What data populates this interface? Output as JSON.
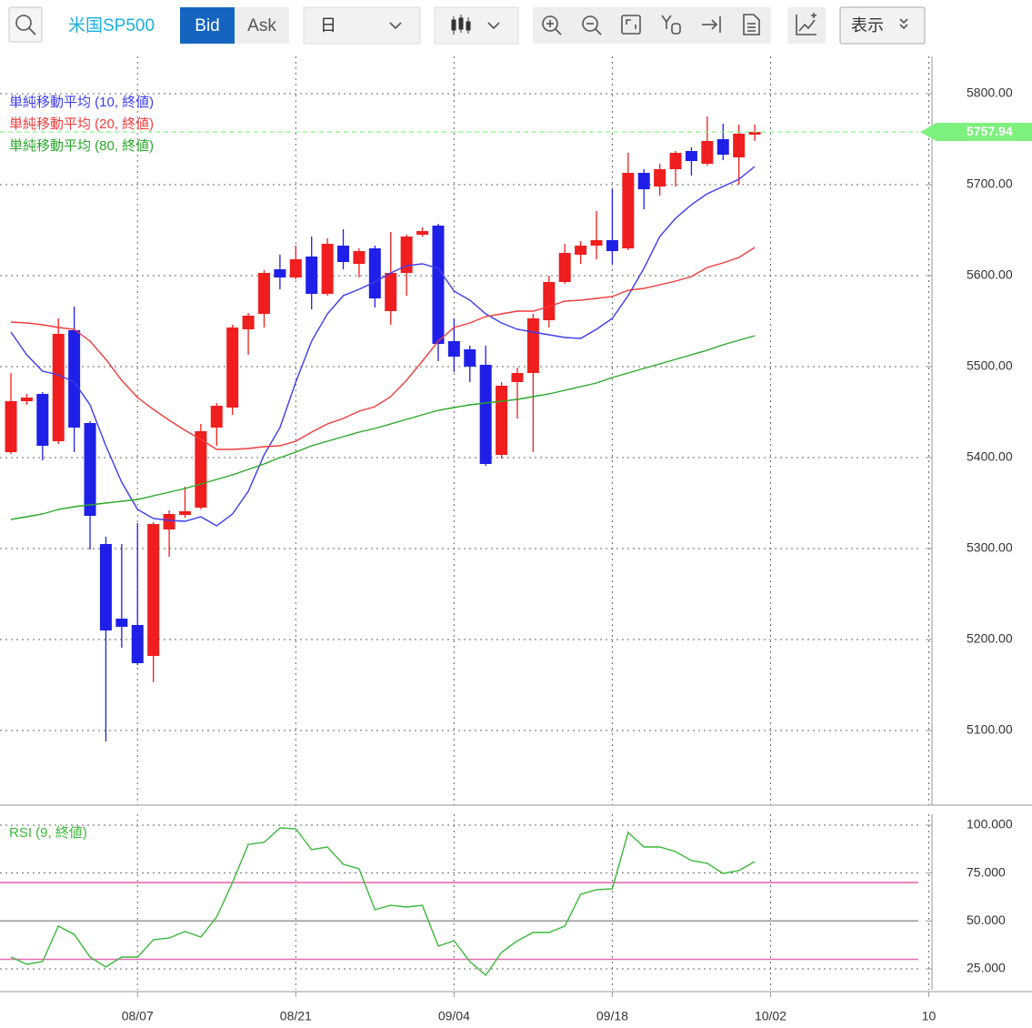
{
  "toolbar": {
    "symbol": "米国SP500",
    "bid": "Bid",
    "ask": "Ask",
    "period": "日",
    "display": "表示"
  },
  "chart_data": [
    {
      "type": "candlestick",
      "candles": {
        "open": [
          5406,
          5462,
          5470,
          5418,
          5540,
          5438,
          5305,
          5223,
          5216,
          5182,
          5321,
          5337,
          5345,
          5433,
          5455,
          5541,
          5558,
          5607,
          5598,
          5621,
          5580,
          5633,
          5613,
          5630,
          5561,
          5603,
          5645,
          5655,
          5528,
          5519,
          5502,
          5403,
          5483,
          5493,
          5551,
          5593,
          5623,
          5633,
          5639,
          5630,
          5713,
          5698,
          5717,
          5737,
          5723,
          5750,
          5730,
          5755
        ],
        "high": [
          5493,
          5470,
          5472,
          5553,
          5566,
          5440,
          5313,
          5305,
          5328,
          5329,
          5342,
          5368,
          5437,
          5460,
          5546,
          5559,
          5606,
          5623,
          5633,
          5643,
          5641,
          5651,
          5630,
          5633,
          5648,
          5645,
          5653,
          5657,
          5553,
          5523,
          5523,
          5483,
          5499,
          5558,
          5600,
          5635,
          5638,
          5671,
          5695,
          5735,
          5717,
          5723,
          5737,
          5741,
          5775,
          5767,
          5766,
          5766
        ],
        "low": [
          5404,
          5458,
          5397,
          5415,
          5406,
          5299,
          5088,
          5191,
          5172,
          5153,
          5291,
          5334,
          5343,
          5413,
          5447,
          5513,
          5543,
          5585,
          5596,
          5563,
          5578,
          5607,
          5598,
          5565,
          5546,
          5578,
          5643,
          5506,
          5494,
          5483,
          5391,
          5399,
          5443,
          5406,
          5543,
          5591,
          5613,
          5618,
          5613,
          5628,
          5673,
          5688,
          5698,
          5710,
          5721,
          5727,
          5700,
          5748
        ],
        "close": [
          5462,
          5466,
          5413,
          5536,
          5433,
          5336,
          5210,
          5214,
          5174,
          5327,
          5338,
          5341,
          5429,
          5457,
          5543,
          5556,
          5603,
          5598,
          5618,
          5580,
          5635,
          5615,
          5627,
          5575,
          5603,
          5643,
          5649,
          5525,
          5511,
          5500,
          5393,
          5479,
          5493,
          5553,
          5593,
          5625,
          5633,
          5639,
          5627,
          5713,
          5695,
          5717,
          5735,
          5726,
          5748,
          5733,
          5756,
          5758
        ]
      },
      "up_color": "#f01e1e",
      "down_color": "#1f1fe8",
      "series": [
        {
          "name": "単純移動平均 (10, 終値)",
          "color": "#3c3cf0",
          "values": [
            5538,
            5513,
            5495,
            5491,
            5483,
            5458,
            5413,
            5373,
            5343,
            5333,
            5331,
            5330,
            5335,
            5325,
            5338,
            5363,
            5403,
            5433,
            5483,
            5528,
            5558,
            5578,
            5585,
            5593,
            5603,
            5611,
            5613,
            5608,
            5583,
            5573,
            5558,
            5548,
            5541,
            5538,
            5535,
            5532,
            5531,
            5541,
            5553,
            5578,
            5608,
            5643,
            5663,
            5678,
            5690,
            5698,
            5706,
            5720
          ]
        },
        {
          "name": "単純移動平均 (20, 終値)",
          "color": "#f03c3c",
          "values": [
            5549,
            5548,
            5546,
            5543,
            5541,
            5528,
            5508,
            5485,
            5466,
            5453,
            5441,
            5430,
            5420,
            5409,
            5409,
            5410,
            5412,
            5413,
            5418,
            5428,
            5437,
            5443,
            5451,
            5456,
            5467,
            5485,
            5506,
            5528,
            5543,
            5548,
            5555,
            5558,
            5561,
            5561,
            5566,
            5572,
            5573,
            5575,
            5577,
            5584,
            5586,
            5590,
            5594,
            5599,
            5609,
            5614,
            5620,
            5631
          ]
        },
        {
          "name": "単純移動平均 (80, 終値)",
          "color": "#2aa82a",
          "values": [
            5332,
            5335,
            5338,
            5343,
            5346,
            5348,
            5350,
            5352,
            5354,
            5358,
            5362,
            5366,
            5371,
            5376,
            5381,
            5387,
            5393,
            5400,
            5406,
            5413,
            5418,
            5423,
            5428,
            5432,
            5437,
            5442,
            5447,
            5452,
            5455,
            5458,
            5460,
            5462,
            5464,
            5467,
            5470,
            5474,
            5478,
            5482,
            5488,
            5493,
            5498,
            5503,
            5508,
            5513,
            5518,
            5524,
            5529,
            5534
          ]
        }
      ],
      "last_price": 5757.94,
      "last_price_color": "#7ef07e",
      "xlim": [
        -0.69,
        58.2
      ],
      "ylim": [
        5018,
        5845
      ],
      "yticks": [
        {
          "value": 5100,
          "label": "5100.00"
        },
        {
          "value": 5200,
          "label": "5200.00"
        },
        {
          "value": 5300,
          "label": "5300.00"
        },
        {
          "value": 5400,
          "label": "5400.00"
        },
        {
          "value": 5500,
          "label": "5500.00"
        },
        {
          "value": 5600,
          "label": "5600.00"
        },
        {
          "value": 5700,
          "label": "5700.00"
        },
        {
          "value": 5800,
          "label": "5800.00"
        }
      ],
      "grid": true
    },
    {
      "type": "line",
      "series": [
        {
          "name": "RSI (9, 終値)",
          "color": "#3cb83c",
          "values": [
            31.2,
            27.4,
            28.8,
            47.3,
            43.0,
            31.2,
            26.0,
            31.2,
            31.2,
            40.2,
            41.1,
            44.5,
            41.6,
            52.1,
            70.1,
            90.0,
            91.0,
            98.6,
            98.1,
            87.2,
            88.6,
            79.6,
            77.2,
            55.9,
            58.2,
            57.3,
            58.2,
            36.9,
            39.7,
            28.8,
            21.7,
            33.6,
            39.7,
            44.0,
            44.0,
            47.3,
            63.9,
            66.3,
            66.8,
            96.2,
            88.6,
            88.6,
            86.2,
            81.5,
            80.1,
            74.8,
            76.3,
            81.0
          ]
        }
      ],
      "levels": [
        {
          "value": 70,
          "color": "#e66ab4"
        },
        {
          "value": 50,
          "color": "#9a9a9a"
        },
        {
          "value": 30,
          "color": "#e66ab4"
        }
      ],
      "xlim": [
        -0.69,
        58.2
      ],
      "ylim": [
        14.1,
        105.7
      ],
      "xticks": [
        {
          "value": 8,
          "label": "08/07"
        },
        {
          "value": 18,
          "label": "08/21"
        },
        {
          "value": 28,
          "label": "09/04"
        },
        {
          "value": 38,
          "label": "09/18"
        },
        {
          "value": 48,
          "label": "10/02"
        },
        {
          "value": 58,
          "label": "10"
        }
      ],
      "yticks": [
        {
          "value": 25,
          "label": "25.000"
        },
        {
          "value": 50,
          "label": "50.000"
        },
        {
          "value": 75,
          "label": "75.000"
        },
        {
          "value": 100,
          "label": "100.000"
        }
      ],
      "grid": true
    }
  ]
}
